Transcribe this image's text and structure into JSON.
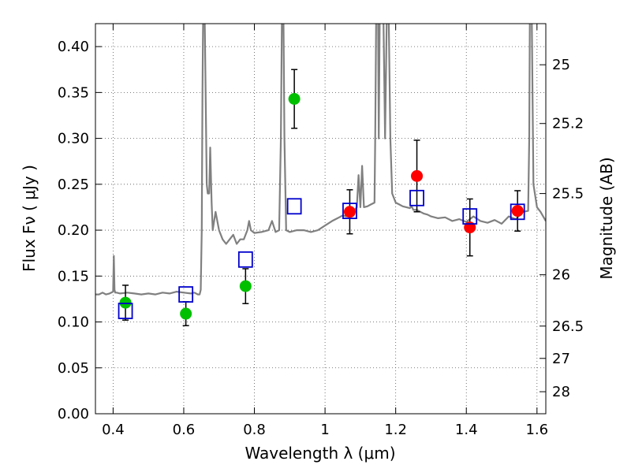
{
  "chart_data": {
    "type": "scatter",
    "xlabel": "Wavelength  λ (μm)",
    "ylabel": "Flux  Fν  ( μJy )",
    "y2label": "Magnitude (AB)",
    "xlim": [
      0.35,
      1.625
    ],
    "ylim": [
      0.0,
      0.425
    ],
    "grid": true,
    "x_ticks": [
      0.4,
      0.6,
      0.8,
      1.0,
      1.2,
      1.4,
      1.6
    ],
    "x_tick_labels": [
      "0.4",
      "0.6",
      "0.8",
      "1",
      "1.2",
      "1.4",
      "1.6"
    ],
    "y_ticks": [
      0.0,
      0.05,
      0.1,
      0.15,
      0.2,
      0.25,
      0.3,
      0.35,
      0.4
    ],
    "y_tick_labels": [
      "0.00",
      "0.05",
      "0.10",
      "0.15",
      "0.20",
      "0.25",
      "0.30",
      "0.35",
      "0.40"
    ],
    "y2_ticks": [
      {
        "label": "25",
        "flux": 0.3802
      },
      {
        "label": "25.2",
        "flux": 0.3162
      },
      {
        "label": "25.5",
        "flux": 0.2399
      },
      {
        "label": "26",
        "flux": 0.1514
      },
      {
        "label": "26.5",
        "flux": 0.0955
      },
      {
        "label": "27",
        "flux": 0.0603
      },
      {
        "label": "28",
        "flux": 0.024
      }
    ],
    "series": [
      {
        "role": "model_spectrum",
        "kind": "line",
        "color": "#808080",
        "x": [
          0.35,
          0.36,
          0.37,
          0.38,
          0.39,
          0.4,
          0.402,
          0.404,
          0.406,
          0.41,
          0.42,
          0.44,
          0.46,
          0.48,
          0.5,
          0.52,
          0.54,
          0.56,
          0.58,
          0.6,
          0.62,
          0.63,
          0.64,
          0.645,
          0.648,
          0.651,
          0.653,
          0.655,
          0.656,
          0.657,
          0.659,
          0.662,
          0.665,
          0.668,
          0.672,
          0.675,
          0.677,
          0.679,
          0.682,
          0.69,
          0.7,
          0.71,
          0.72,
          0.73,
          0.74,
          0.75,
          0.76,
          0.77,
          0.78,
          0.785,
          0.79,
          0.8,
          0.82,
          0.84,
          0.85,
          0.86,
          0.87,
          0.875,
          0.878,
          0.88,
          0.882,
          0.885,
          0.89,
          0.9,
          0.92,
          0.94,
          0.96,
          0.98,
          1.0,
          1.02,
          1.03,
          1.04,
          1.05,
          1.06,
          1.07,
          1.08,
          1.09,
          1.095,
          1.1,
          1.105,
          1.11,
          1.12,
          1.13,
          1.14,
          1.142,
          1.145,
          1.148,
          1.15,
          1.152,
          1.155,
          1.158,
          1.16,
          1.165,
          1.17,
          1.175,
          1.18,
          1.185,
          1.19,
          1.2,
          1.21,
          1.22,
          1.23,
          1.24,
          1.245,
          1.25,
          1.26,
          1.27,
          1.28,
          1.29,
          1.3,
          1.32,
          1.34,
          1.36,
          1.38,
          1.4,
          1.42,
          1.44,
          1.46,
          1.48,
          1.5,
          1.52,
          1.54,
          1.56,
          1.575,
          1.578,
          1.58,
          1.582,
          1.585,
          1.59,
          1.6,
          1.61,
          1.625
        ],
        "y": [
          0.13,
          0.13,
          0.132,
          0.13,
          0.131,
          0.133,
          0.172,
          0.135,
          0.132,
          0.132,
          0.131,
          0.132,
          0.131,
          0.13,
          0.131,
          0.13,
          0.132,
          0.131,
          0.133,
          0.132,
          0.131,
          0.132,
          0.13,
          0.13,
          0.135,
          0.2,
          0.35,
          0.44,
          0.44,
          0.44,
          0.44,
          0.35,
          0.25,
          0.24,
          0.24,
          0.29,
          0.26,
          0.23,
          0.2,
          0.22,
          0.2,
          0.19,
          0.185,
          0.19,
          0.195,
          0.185,
          0.19,
          0.19,
          0.2,
          0.21,
          0.2,
          0.197,
          0.198,
          0.2,
          0.21,
          0.198,
          0.2,
          0.3,
          0.44,
          0.44,
          0.44,
          0.3,
          0.2,
          0.198,
          0.2,
          0.2,
          0.198,
          0.2,
          0.205,
          0.21,
          0.212,
          0.214,
          0.216,
          0.215,
          0.218,
          0.22,
          0.225,
          0.26,
          0.225,
          0.27,
          0.225,
          0.226,
          0.228,
          0.23,
          0.3,
          0.44,
          0.44,
          0.44,
          0.3,
          0.44,
          0.44,
          0.44,
          0.44,
          0.3,
          0.44,
          0.44,
          0.3,
          0.24,
          0.23,
          0.228,
          0.226,
          0.225,
          0.224,
          0.226,
          0.222,
          0.222,
          0.22,
          0.218,
          0.217,
          0.215,
          0.213,
          0.214,
          0.21,
          0.212,
          0.209,
          0.215,
          0.21,
          0.208,
          0.211,
          0.207,
          0.215,
          0.212,
          0.22,
          0.221,
          0.3,
          0.44,
          0.44,
          0.44,
          0.25,
          0.225,
          0.22,
          0.21
        ]
      },
      {
        "role": "photometry_blue",
        "kind": "points",
        "marker": "circle",
        "color": "#00bf00",
        "points": [
          {
            "x": 0.435,
            "y": 0.121,
            "err": 0.019
          },
          {
            "x": 0.606,
            "y": 0.109,
            "err": 0.013
          },
          {
            "x": 0.775,
            "y": 0.139,
            "err": 0.019
          },
          {
            "x": 0.913,
            "y": 0.343,
            "err": 0.032
          }
        ]
      },
      {
        "role": "photometry_red",
        "kind": "points",
        "marker": "circle",
        "color": "#ff0000",
        "points": [
          {
            "x": 1.07,
            "y": 0.22,
            "err": 0.024
          },
          {
            "x": 1.26,
            "y": 0.259,
            "err": 0.039
          },
          {
            "x": 1.41,
            "y": 0.203,
            "err": 0.031
          },
          {
            "x": 1.545,
            "y": 0.221,
            "err": 0.022
          }
        ]
      },
      {
        "role": "model_photometry",
        "kind": "points",
        "marker": "square-open",
        "color": "#0000cc",
        "points": [
          {
            "x": 0.435,
            "y": 0.112
          },
          {
            "x": 0.606,
            "y": 0.13
          },
          {
            "x": 0.775,
            "y": 0.168
          },
          {
            "x": 0.913,
            "y": 0.226
          },
          {
            "x": 1.07,
            "y": 0.221
          },
          {
            "x": 1.26,
            "y": 0.235
          },
          {
            "x": 1.41,
            "y": 0.215
          },
          {
            "x": 1.545,
            "y": 0.22
          }
        ]
      }
    ]
  }
}
